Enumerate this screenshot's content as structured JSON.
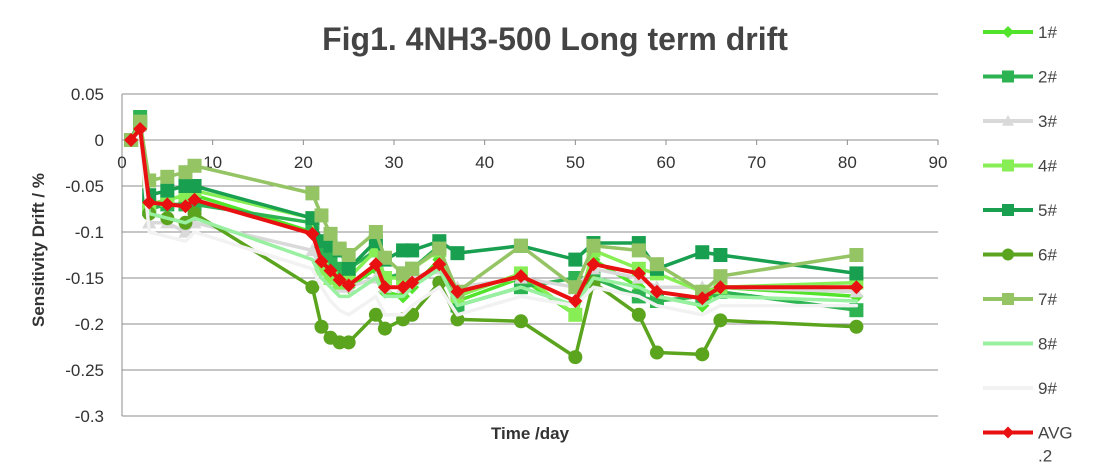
{
  "chart_data": {
    "type": "line",
    "title": "Fig1. 4NH3-500 Long term drift",
    "xlabel": "Time /day",
    "ylabel": "Sensitivity Drift / %",
    "xlim": [
      0,
      90
    ],
    "ylim": [
      -0.3,
      0.05
    ],
    "xticks": [
      "0",
      "10",
      "20",
      "30",
      "40",
      "50",
      "60",
      "70",
      "80",
      "90"
    ],
    "yticks": [
      "0.05",
      "0",
      "-0.05",
      "-0.1",
      "-0.15",
      "-0.2",
      "-0.25",
      "-0.3"
    ],
    "grid": "horizontal",
    "legend_position": "right",
    "x": [
      1,
      2,
      3,
      5,
      7,
      8,
      21,
      22,
      23,
      24,
      25,
      28,
      29,
      31,
      32,
      35,
      37,
      44,
      50,
      52,
      57,
      59,
      64,
      66,
      81
    ],
    "series": [
      {
        "name": "1#",
        "color": "#52e42a",
        "marker": "diamond",
        "values": [
          0,
          0.02,
          -0.07,
          -0.065,
          -0.06,
          -0.06,
          -0.1,
          -0.13,
          -0.145,
          -0.155,
          -0.16,
          -0.14,
          -0.165,
          -0.17,
          -0.16,
          -0.13,
          -0.175,
          -0.15,
          -0.19,
          -0.13,
          -0.16,
          -0.17,
          -0.18,
          -0.16,
          -0.17
        ]
      },
      {
        "name": "2#",
        "color": "#2db352",
        "marker": "square",
        "values": [
          0,
          0.025,
          -0.075,
          -0.07,
          -0.07,
          -0.07,
          -0.09,
          -0.12,
          -0.13,
          -0.14,
          -0.14,
          -0.12,
          -0.15,
          -0.145,
          -0.14,
          -0.115,
          -0.18,
          -0.16,
          -0.15,
          -0.15,
          -0.17,
          -0.175,
          -0.17,
          -0.165,
          -0.185
        ]
      },
      {
        "name": "3#",
        "color": "#d9d9d9",
        "marker": "triangle",
        "values": [
          0,
          0.015,
          -0.09,
          -0.09,
          -0.1,
          -0.09,
          -0.12,
          -0.14,
          -0.15,
          -0.16,
          -0.16,
          -0.15,
          -0.16,
          -0.16,
          -0.15,
          -0.14,
          -0.16,
          -0.15,
          -0.16,
          -0.14,
          -0.15,
          -0.16,
          -0.16,
          -0.16,
          -0.165
        ]
      },
      {
        "name": "4#",
        "color": "#88ee55",
        "marker": "square",
        "values": [
          0,
          0.018,
          -0.07,
          -0.065,
          -0.06,
          -0.055,
          -0.085,
          -0.14,
          -0.15,
          -0.155,
          -0.15,
          -0.12,
          -0.15,
          -0.15,
          -0.14,
          -0.12,
          -0.17,
          -0.145,
          -0.19,
          -0.12,
          -0.14,
          -0.145,
          -0.165,
          -0.16,
          -0.155
        ]
      },
      {
        "name": "5#",
        "color": "#18a050",
        "marker": "square",
        "values": [
          0,
          0.02,
          -0.06,
          -0.055,
          -0.05,
          -0.05,
          -0.085,
          -0.11,
          -0.115,
          -0.12,
          -0.14,
          -0.11,
          -0.13,
          -0.12,
          -0.12,
          -0.11,
          -0.123,
          -0.115,
          -0.13,
          -0.112,
          -0.112,
          -0.14,
          -0.122,
          -0.125,
          -0.145
        ]
      },
      {
        "name": "6#",
        "color": "#5aa41e",
        "marker": "circle",
        "values": [
          0,
          0.015,
          -0.08,
          -0.085,
          -0.09,
          -0.08,
          -0.16,
          -0.203,
          -0.215,
          -0.22,
          -0.22,
          -0.19,
          -0.205,
          -0.195,
          -0.19,
          -0.155,
          -0.195,
          -0.197,
          -0.236,
          -0.155,
          -0.19,
          -0.231,
          -0.233,
          -0.196,
          -0.203
        ]
      },
      {
        "name": "7#",
        "color": "#94c464",
        "marker": "square",
        "values": [
          0,
          0.02,
          -0.044,
          -0.04,
          -0.035,
          -0.028,
          -0.058,
          -0.082,
          -0.102,
          -0.118,
          -0.125,
          -0.1,
          -0.128,
          -0.145,
          -0.14,
          -0.118,
          -0.165,
          -0.115,
          -0.16,
          -0.115,
          -0.12,
          -0.135,
          -0.165,
          -0.148,
          -0.125
        ]
      },
      {
        "name": "8#",
        "color": "#98f0a0",
        "marker": "line",
        "values": [
          0,
          0.01,
          -0.08,
          -0.085,
          -0.09,
          -0.085,
          -0.13,
          -0.15,
          -0.16,
          -0.17,
          -0.17,
          -0.15,
          -0.17,
          -0.17,
          -0.16,
          -0.14,
          -0.18,
          -0.16,
          -0.18,
          -0.15,
          -0.16,
          -0.17,
          -0.18,
          -0.17,
          -0.175
        ]
      },
      {
        "name": "9#",
        "color": "#f2f2f2",
        "marker": "line",
        "values": [
          0,
          0.005,
          -0.1,
          -0.105,
          -0.11,
          -0.1,
          -0.14,
          -0.16,
          -0.175,
          -0.185,
          -0.19,
          -0.17,
          -0.19,
          -0.19,
          -0.18,
          -0.16,
          -0.19,
          -0.17,
          -0.18,
          -0.16,
          -0.17,
          -0.18,
          -0.19,
          -0.18,
          -0.18
        ]
      },
      {
        "name": "AVG",
        "name_extra": ".2",
        "color": "#e81010",
        "marker": "diamond",
        "bold": true,
        "values": [
          0,
          0.012,
          -0.068,
          -0.07,
          -0.072,
          -0.065,
          -0.102,
          -0.132,
          -0.142,
          -0.152,
          -0.158,
          -0.135,
          -0.16,
          -0.16,
          -0.155,
          -0.135,
          -0.165,
          -0.148,
          -0.175,
          -0.135,
          -0.145,
          -0.165,
          -0.172,
          -0.16,
          -0.16
        ]
      }
    ]
  }
}
